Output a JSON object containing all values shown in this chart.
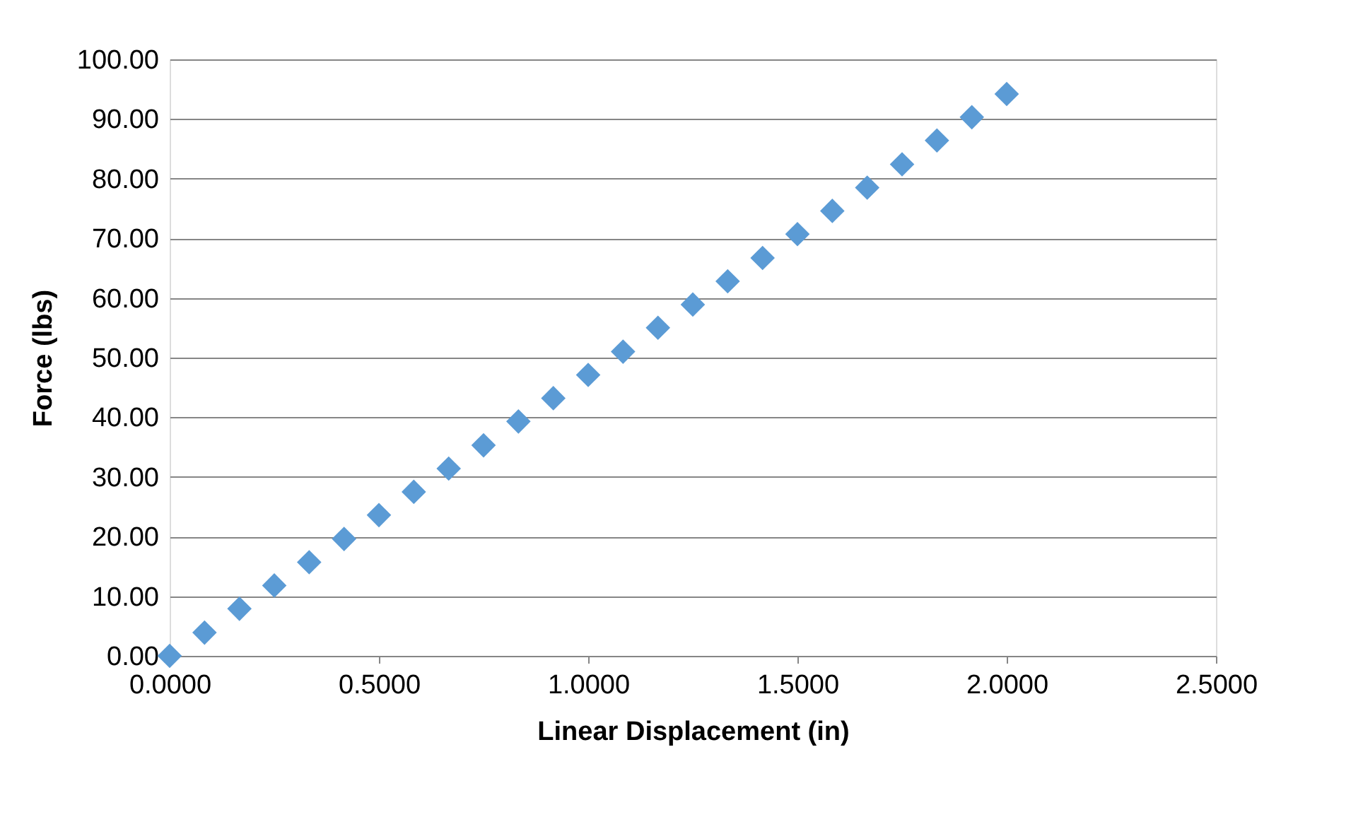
{
  "chart_data": {
    "type": "scatter",
    "xlabel": "Linear Displacement (in)",
    "ylabel": "Force (lbs)",
    "x": [
      0,
      0.0833,
      0.1667,
      0.25,
      0.3333,
      0.4167,
      0.5,
      0.5833,
      0.6667,
      0.75,
      0.8333,
      0.9167,
      1.0,
      1.0833,
      1.1667,
      1.25,
      1.3333,
      1.4167,
      1.5,
      1.5833,
      1.6667,
      1.75,
      1.8333,
      1.9167,
      2.0
    ],
    "series": [
      {
        "color": "#5b9bd5",
        "values": [
          0,
          3.9,
          7.9,
          11.8,
          15.7,
          19.6,
          23.6,
          27.5,
          31.4,
          35.3,
          39.3,
          43.2,
          47.1,
          51.0,
          55.0,
          58.9,
          62.8,
          66.7,
          70.7,
          74.6,
          78.5,
          82.4,
          86.4,
          90.3,
          94.2
        ]
      }
    ],
    "xlim": [
      0,
      2.5
    ],
    "xticks": [
      {
        "value": 0,
        "label": "0.0000"
      },
      {
        "value": 0.5,
        "label": "0.5000"
      },
      {
        "value": 1,
        "label": "1.0000"
      },
      {
        "value": 1.5,
        "label": "1.5000"
      },
      {
        "value": 2,
        "label": "2.0000"
      },
      {
        "value": 2.5,
        "label": "2.5000"
      }
    ],
    "ylim": [
      0,
      100
    ],
    "yticks": [
      {
        "value": 0,
        "label": "0.00"
      },
      {
        "value": 10,
        "label": "10.00"
      },
      {
        "value": 20,
        "label": "20.00"
      },
      {
        "value": 30,
        "label": "30.00"
      },
      {
        "value": 40,
        "label": "40.00"
      },
      {
        "value": 50,
        "label": "50.00"
      },
      {
        "value": 60,
        "label": "60.00"
      },
      {
        "value": 70,
        "label": "70.00"
      },
      {
        "value": 80,
        "label": "80.00"
      },
      {
        "value": 90,
        "label": "90.00"
      },
      {
        "value": 100,
        "label": "100.00"
      }
    ],
    "grid": "y",
    "marker": "diamond"
  }
}
